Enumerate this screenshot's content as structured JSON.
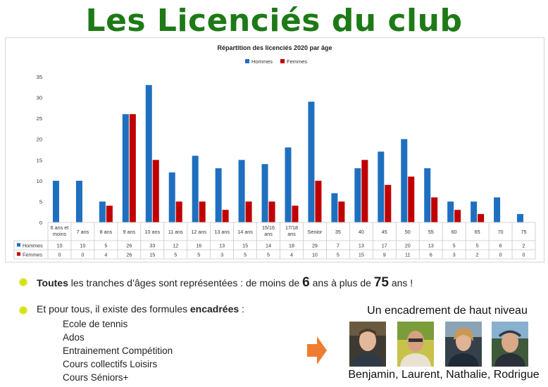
{
  "header": {
    "title": "Les Licenciés du club"
  },
  "colors": {
    "hommes": "#1f6fc0",
    "femmes": "#c00000",
    "title": "#1d7a16",
    "bullet": "#d8e400",
    "arrow": "#ee7d31"
  },
  "chart_data": {
    "type": "bar",
    "title": "Répartition des licenciés 2020 par âge",
    "categories": [
      [
        "6 ans et",
        "moins"
      ],
      [
        "7 ans"
      ],
      [
        "8 ans"
      ],
      [
        "9 ans"
      ],
      [
        "10 ans"
      ],
      [
        "11 ans"
      ],
      [
        "12 ans"
      ],
      [
        "13 ans"
      ],
      [
        "14 ans"
      ],
      [
        "15/16",
        "ans"
      ],
      [
        "17/18",
        "ans"
      ],
      [
        "Senior"
      ],
      [
        "35"
      ],
      [
        "40"
      ],
      [
        "45"
      ],
      [
        "50"
      ],
      [
        "55"
      ],
      [
        "60"
      ],
      [
        "65"
      ],
      [
        "70"
      ],
      [
        "75"
      ]
    ],
    "series": [
      {
        "name": "Hommes",
        "values": [
          10,
          10,
          5,
          26,
          33,
          12,
          16,
          13,
          15,
          14,
          18,
          29,
          7,
          13,
          17,
          20,
          13,
          5,
          5,
          6,
          2
        ]
      },
      {
        "name": "Femmes",
        "values": [
          0,
          0,
          4,
          26,
          15,
          5,
          5,
          3,
          5,
          5,
          4,
          10,
          5,
          15,
          9,
          11,
          6,
          3,
          2,
          0,
          0
        ]
      }
    ],
    "ylim": [
      0,
      35
    ],
    "yticks": [
      0,
      5,
      10,
      15,
      20,
      25,
      30,
      35
    ],
    "legend": "top-center",
    "data_table": true,
    "grid": false
  },
  "bullets": {
    "line1_bold": "Toutes",
    "line1_a": " les tranches d’âges sont représentées :  de moins de ",
    "line1_num1": "6",
    "line1_b": " ans à plus de ",
    "line1_num2": "75",
    "line1_c": " ans !",
    "line2_a": "Et pour tous, il existe des formules ",
    "line2_bold": "encadrées",
    "line2_c": " :",
    "items": [
      "Ecole de tennis",
      "Ados",
      "Entrainement Compétition",
      "Cours collectifs Loisirs",
      "Cours Séniors+"
    ]
  },
  "team": {
    "title": "Un encadrement de haut niveau",
    "names": "Benjamin, Laurent, Nathalie, Rodrigue"
  }
}
